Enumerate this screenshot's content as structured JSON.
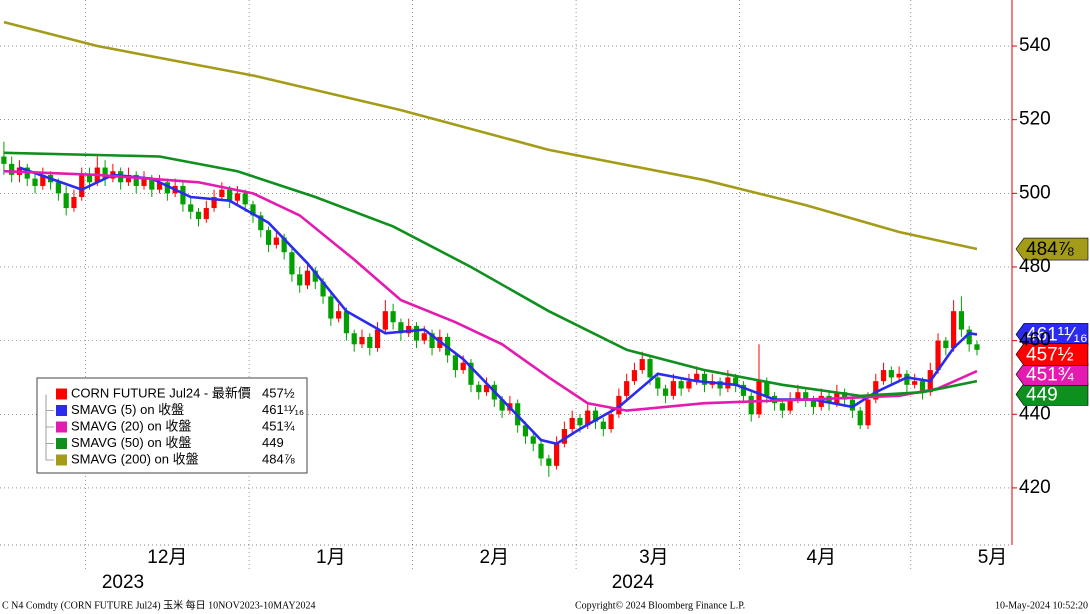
{
  "chart_data": {
    "type": "candlestick",
    "ylim": [
      404.5,
      552.5
    ],
    "yticks": [
      420,
      440,
      460,
      480,
      500,
      520,
      540
    ],
    "grid": true,
    "xlim": [
      -0.5,
      129.5
    ],
    "month_separators": [
      10.5,
      31.5,
      52.5,
      73.5,
      94.5,
      116.5
    ],
    "month_labels": [
      {
        "value": 21,
        "label": "12月"
      },
      {
        "value": 42,
        "label": "1月"
      },
      {
        "value": 63,
        "label": "2月"
      },
      {
        "value": 83.5,
        "label": "3月"
      },
      {
        "value": 105,
        "label": "4月"
      },
      {
        "value": 127,
        "label": "5月"
      }
    ],
    "year_labels": [
      {
        "value": 15.3,
        "label": "2023"
      },
      {
        "value": 80.8,
        "label": "2024"
      }
    ],
    "ohlc": {
      "name": "CORN FUTURE Jul24 - 最新價",
      "value_label": "457½",
      "up_color": "#ff0000",
      "down_color": "#00a000",
      "legend_color": "#ff0000",
      "open": [
        510,
        508,
        505,
        507,
        504,
        502,
        505,
        503,
        500,
        496,
        499,
        505,
        503,
        507,
        504,
        506,
        503,
        505,
        502,
        504,
        501,
        503,
        500,
        502,
        497,
        495,
        493,
        496,
        499,
        501,
        498,
        500,
        497,
        494,
        490,
        486,
        488,
        484,
        478,
        475,
        479,
        476,
        472,
        466,
        468,
        462,
        459,
        461,
        458,
        463,
        468,
        465,
        462,
        464,
        460,
        462,
        458,
        461,
        456,
        452,
        454,
        448,
        446,
        448,
        444,
        441,
        443,
        437,
        434,
        432,
        428,
        426,
        432,
        436,
        439,
        437,
        441,
        438,
        436,
        440,
        445,
        449,
        452,
        455,
        450,
        447,
        445,
        449,
        447,
        449,
        451,
        448,
        449,
        447,
        450,
        448,
        445,
        440,
        449,
        445,
        443,
        441,
        444,
        446,
        444,
        442,
        445,
        443,
        446,
        444,
        441,
        437,
        444,
        449,
        452,
        450,
        451,
        448,
        449,
        446,
        452,
        460,
        458,
        468,
        463,
        459
      ],
      "high": [
        514,
        510,
        509,
        508,
        506,
        507,
        506,
        504,
        502,
        501,
        507,
        507,
        510,
        509,
        508,
        507,
        507,
        506,
        506,
        505,
        505,
        504,
        504,
        503,
        499,
        496,
        498,
        501,
        503,
        502,
        502,
        501,
        498,
        495,
        491,
        490,
        489,
        485,
        480,
        481,
        480,
        477,
        473,
        470,
        469,
        463,
        463,
        462,
        465,
        471,
        470,
        466,
        466,
        465,
        464,
        463,
        463,
        462,
        457,
        456,
        455,
        449,
        450,
        449,
        445,
        445,
        444,
        438,
        435,
        433,
        429,
        434,
        438,
        441,
        440,
        443,
        442,
        439,
        442,
        447,
        451,
        454,
        457,
        456,
        451,
        448,
        451,
        450,
        451,
        453,
        452,
        451,
        450,
        452,
        451,
        449,
        446,
        459,
        450,
        446,
        444,
        446,
        448,
        447,
        445,
        447,
        446,
        448,
        447,
        445,
        442,
        446,
        451,
        454,
        453,
        453,
        452,
        451,
        450,
        454,
        462,
        461,
        471,
        472,
        464,
        460
      ],
      "low": [
        505,
        503,
        503,
        502,
        500,
        501,
        501,
        498,
        494,
        495,
        498,
        501,
        502,
        502,
        503,
        501,
        502,
        500,
        501,
        499,
        500,
        498,
        499,
        495,
        493,
        491,
        492,
        495,
        498,
        496,
        497,
        495,
        492,
        488,
        484,
        485,
        482,
        476,
        473,
        474,
        474,
        470,
        464,
        465,
        460,
        457,
        458,
        456,
        457,
        462,
        463,
        460,
        461,
        458,
        459,
        456,
        457,
        454,
        450,
        451,
        446,
        444,
        445,
        442,
        439,
        440,
        435,
        432,
        430,
        426,
        423,
        425,
        431,
        435,
        435,
        436,
        436,
        434,
        435,
        439,
        444,
        448,
        451,
        448,
        445,
        443,
        444,
        445,
        446,
        448,
        446,
        447,
        445,
        446,
        446,
        443,
        438,
        439,
        443,
        441,
        439,
        440,
        443,
        442,
        440,
        441,
        441,
        442,
        442,
        439,
        436,
        436,
        443,
        448,
        448,
        449,
        446,
        447,
        444,
        445,
        451,
        456,
        457,
        461,
        457,
        456
      ],
      "close": [
        508,
        505,
        507,
        504,
        502,
        505,
        503,
        500,
        496,
        499,
        505,
        503,
        507,
        504,
        506,
        503,
        505,
        502,
        504,
        501,
        503,
        500,
        502,
        497,
        495,
        493,
        496,
        499,
        501,
        498,
        500,
        497,
        494,
        490,
        486,
        488,
        484,
        478,
        475,
        479,
        476,
        472,
        466,
        468,
        462,
        459,
        461,
        458,
        463,
        468,
        465,
        462,
        464,
        460,
        462,
        458,
        461,
        456,
        452,
        454,
        448,
        446,
        448,
        444,
        441,
        443,
        437,
        434,
        432,
        428,
        426,
        432,
        436,
        439,
        437,
        441,
        438,
        436,
        440,
        445,
        449,
        452,
        455,
        450,
        447,
        445,
        449,
        447,
        449,
        451,
        448,
        449,
        447,
        450,
        448,
        445,
        440,
        449,
        445,
        443,
        441,
        444,
        446,
        444,
        442,
        445,
        443,
        446,
        444,
        441,
        437,
        444,
        449,
        452,
        450,
        451,
        448,
        449,
        446,
        452,
        460,
        458,
        468,
        463,
        459,
        457.5
      ]
    },
    "series": [
      {
        "name": "SMAVG (5)  on 收盤",
        "color": "#2b2bf0",
        "value_label": "461¹¹⁄₁₆",
        "x": [
          2,
          6,
          10,
          14,
          19,
          24,
          29,
          34,
          39,
          44,
          49,
          54,
          59,
          64,
          69,
          71,
          74,
          79,
          84,
          89,
          94,
          99,
          104,
          109,
          112,
          116,
          119,
          122,
          124,
          125
        ],
        "values": [
          507,
          504,
          501,
          505,
          504,
          499,
          498,
          492,
          481,
          468,
          462,
          463,
          455,
          444,
          433,
          432,
          436,
          442,
          451,
          449,
          448,
          444,
          444,
          442,
          446,
          450,
          449,
          458,
          462,
          461.6875
        ]
      },
      {
        "name": "SMAVG (20)  on 收盤",
        "color": "#e41bb0",
        "value_label": "451¾",
        "x": [
          0,
          12,
          25,
          32,
          38,
          45,
          51,
          58,
          64,
          70,
          75,
          80,
          90,
          103,
          115,
          120,
          125
        ],
        "values": [
          506,
          505,
          503,
          500,
          494,
          482,
          471,
          465,
          459,
          450,
          443,
          441,
          443,
          444,
          445,
          447,
          451.75
        ]
      },
      {
        "name": "SMAVG (50)  on 收盤",
        "color": "#0e8f1e",
        "value_label": "449",
        "x": [
          0,
          20,
          30,
          40,
          50,
          60,
          70,
          80,
          90,
          100,
          110,
          118,
          125
        ],
        "values": [
          511,
          510,
          506,
          499,
          491,
          480,
          468,
          457.5,
          452,
          448,
          445,
          446,
          449
        ]
      },
      {
        "name": "SMAVG (200)  on 收盤",
        "color": "#a49c18",
        "value_label": "484⅞",
        "x": [
          0,
          12,
          32,
          51,
          70,
          90,
          103,
          115,
          125
        ],
        "values": [
          546.5,
          540,
          532,
          522.6,
          511.8,
          503.6,
          496.8,
          489.5,
          484.875
        ]
      }
    ]
  },
  "footer": {
    "left": "C N4 Comdty (CORN FUTURE        Jul24) 玉米  每日 10NOV2023-10MAY2024",
    "center": "Copyright© 2024 Bloomberg Finance L.P.",
    "right": "10-May-2024 10:52:20"
  }
}
